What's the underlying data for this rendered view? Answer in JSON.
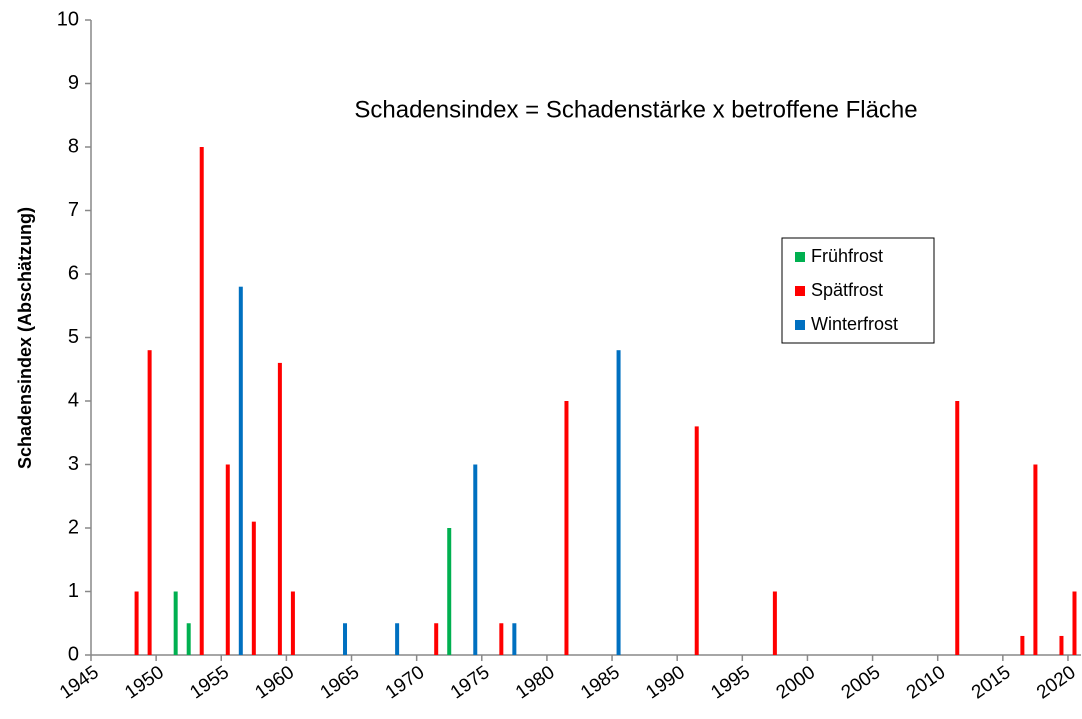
{
  "chart_data": {
    "type": "bar",
    "title": "Schadensindex = Schadenstärke x betroffene Fläche",
    "y_label": "Schadensindex (Abschätzung)",
    "xlim": [
      1945,
      2021
    ],
    "xticks": [
      1945,
      1950,
      1955,
      1960,
      1965,
      1970,
      1975,
      1980,
      1985,
      1990,
      1995,
      2000,
      2005,
      2010,
      2015,
      2020
    ],
    "ylim": [
      0,
      10
    ],
    "yticks": [
      0,
      1,
      2,
      3,
      4,
      5,
      6,
      7,
      8,
      9,
      10
    ],
    "legend": "upper right",
    "series": [
      {
        "name": "Frühfrost",
        "color": "#00b050",
        "x": [
          1951,
          1952,
          1972
        ],
        "values": [
          1,
          0.5,
          2
        ]
      },
      {
        "name": "Spätfrost",
        "color": "#ff0000",
        "x": [
          1948,
          1949,
          1953,
          1955,
          1957,
          1959,
          1960,
          1971,
          1976,
          1981,
          1991,
          1997,
          2011,
          2016,
          2017,
          2019,
          2020
        ],
        "values": [
          1,
          4.8,
          8,
          3,
          2.1,
          4.6,
          1,
          0.5,
          0.5,
          4,
          3.6,
          1,
          4,
          0.3,
          3,
          0.3,
          1
        ]
      },
      {
        "name": "Winterfrost",
        "color": "#0070c0",
        "x": [
          1956,
          1964,
          1968,
          1974,
          1977,
          1985
        ],
        "values": [
          5.8,
          0.5,
          0.5,
          3,
          0.5,
          4.8
        ]
      }
    ]
  }
}
